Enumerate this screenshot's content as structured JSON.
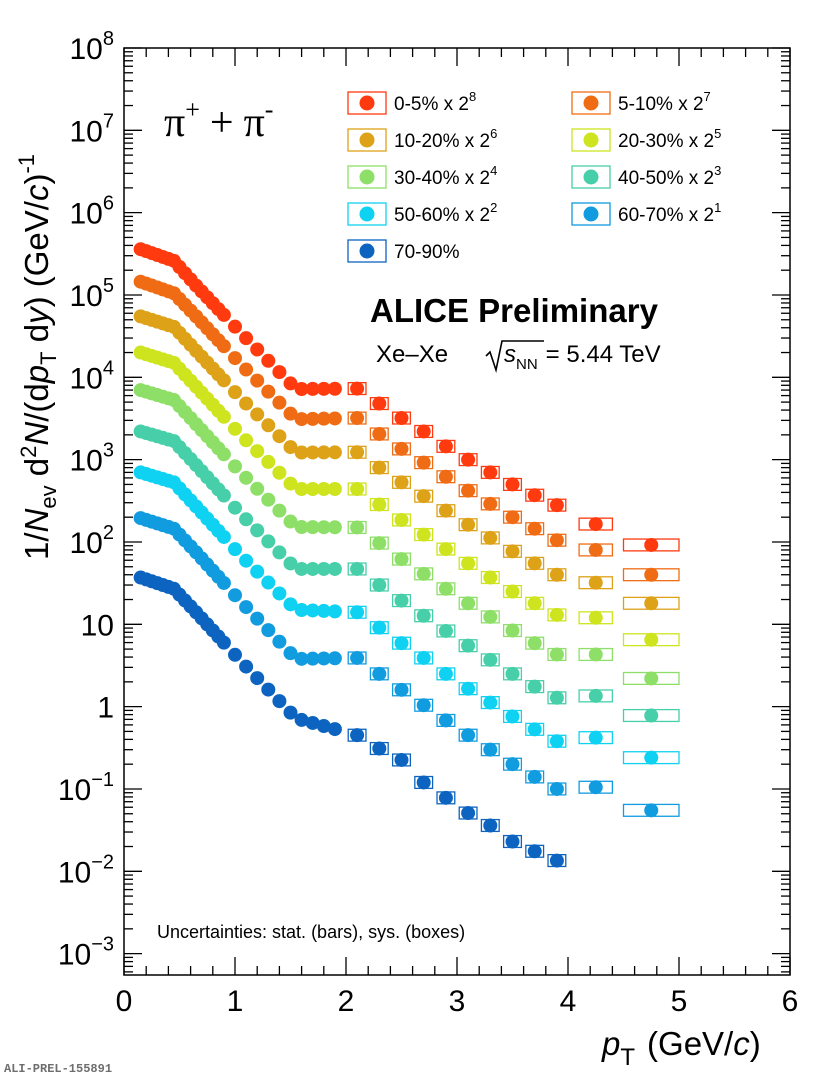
{
  "chart_data": {
    "type": "scatter",
    "title": "ALICE Preliminary",
    "subtitle": {
      "system": "Xe–Xe",
      "energy_var": "s",
      "energy_sub": "NN",
      "energy_value": "= 5.44 TeV"
    },
    "particle": {
      "base1": "π",
      "sup1": "+",
      "plus": "+",
      "base2": "π",
      "sup2": "-"
    },
    "xlabel": {
      "var": "p",
      "sub": "T",
      "unit_open": "(GeV/",
      "unit_c": "c",
      "unit_close": ")"
    },
    "ylabel": {
      "p1": "1/",
      "p2": "N",
      "p3": "ev",
      "p4": " d",
      "p5": "2",
      "p6": "N",
      "p7": "/(d",
      "p8": "p",
      "p9": "T",
      "p10": " d",
      "p11": "y",
      "p12": ") (GeV/",
      "p13": "c",
      "p14": ")",
      "p15": "-1"
    },
    "xlim": [
      0,
      6
    ],
    "ylog": true,
    "ylim": [
      0.00055,
      100000000
    ],
    "x_ticks": [
      "0",
      "1",
      "2",
      "3",
      "4",
      "5",
      "6"
    ],
    "y_ticks": [
      {
        "base": "10",
        "exp": "8"
      },
      {
        "base": "10",
        "exp": "7"
      },
      {
        "base": "10",
        "exp": "6"
      },
      {
        "base": "10",
        "exp": "5"
      },
      {
        "base": "10",
        "exp": "4"
      },
      {
        "base": "10",
        "exp": "3"
      },
      {
        "base": "10",
        "exp": "2"
      },
      {
        "base": "10",
        "exp": ""
      },
      {
        "base": "1",
        "exp": ""
      },
      {
        "base": "10",
        "exp": "−1"
      },
      {
        "base": "10",
        "exp": "−2"
      },
      {
        "base": "10",
        "exp": "−3"
      }
    ],
    "note": "Uncertainties: stat. (bars), sys. (boxes)",
    "series": [
      {
        "name": "0-5% x 2",
        "exp": "8",
        "color": "#ff3a0e",
        "points": [
          [
            0.15,
            360000
          ],
          [
            0.45,
            260000
          ],
          [
            0.65,
            130000
          ],
          [
            1.05,
            35000
          ],
          [
            1.55,
            7200
          ],
          [
            2.1,
            7300
          ],
          [
            2.3,
            4800
          ],
          [
            2.5,
            3200
          ],
          [
            2.7,
            2200
          ],
          [
            2.9,
            1450
          ],
          [
            3.1,
            1000
          ],
          [
            3.3,
            700
          ],
          [
            3.5,
            500
          ],
          [
            3.7,
            370
          ],
          [
            3.9,
            280
          ],
          [
            4.25,
            165
          ],
          [
            4.75,
            92
          ]
        ]
      },
      {
        "name": "5-10% x 2",
        "exp": "7",
        "color": "#f06c14",
        "points": [
          [
            0.15,
            145000
          ],
          [
            0.45,
            105000
          ],
          [
            0.65,
            55000
          ],
          [
            1.05,
            14500
          ],
          [
            1.55,
            3100
          ],
          [
            2.1,
            3200
          ],
          [
            2.3,
            2050
          ],
          [
            2.5,
            1350
          ],
          [
            2.7,
            920
          ],
          [
            2.9,
            620
          ],
          [
            3.1,
            420
          ],
          [
            3.3,
            290
          ],
          [
            3.5,
            200
          ],
          [
            3.7,
            145
          ],
          [
            3.9,
            105
          ],
          [
            4.25,
            80
          ],
          [
            4.75,
            40
          ]
        ]
      },
      {
        "name": "10-20% x 2",
        "exp": "6",
        "color": "#dda218",
        "points": [
          [
            0.15,
            55000
          ],
          [
            0.45,
            41000
          ],
          [
            0.65,
            21000
          ],
          [
            1.05,
            5600
          ],
          [
            1.55,
            1220
          ],
          [
            2.1,
            1230
          ],
          [
            2.3,
            800
          ],
          [
            2.5,
            530
          ],
          [
            2.7,
            360
          ],
          [
            2.9,
            240
          ],
          [
            3.1,
            162
          ],
          [
            3.3,
            112
          ],
          [
            3.5,
            77
          ],
          [
            3.7,
            55
          ],
          [
            3.9,
            40
          ],
          [
            4.25,
            32
          ],
          [
            4.75,
            18
          ]
        ]
      },
      {
        "name": "20-30% x 2",
        "exp": "5",
        "color": "#cde41e",
        "points": [
          [
            0.15,
            20000
          ],
          [
            0.45,
            15000
          ],
          [
            0.65,
            7700
          ],
          [
            1.05,
            2000
          ],
          [
            1.55,
            440
          ],
          [
            2.1,
            440
          ],
          [
            2.3,
            285
          ],
          [
            2.5,
            185
          ],
          [
            2.7,
            123
          ],
          [
            2.9,
            82
          ],
          [
            3.1,
            55
          ],
          [
            3.3,
            37
          ],
          [
            3.5,
            25
          ],
          [
            3.7,
            18
          ],
          [
            3.9,
            13
          ],
          [
            4.25,
            12
          ],
          [
            4.75,
            6.5
          ]
        ]
      },
      {
        "name": "30-40% x 2",
        "exp": "4",
        "color": "#8edf68",
        "points": [
          [
            0.15,
            7000
          ],
          [
            0.45,
            5300
          ],
          [
            0.65,
            2700
          ],
          [
            1.05,
            700
          ],
          [
            1.55,
            152
          ],
          [
            2.1,
            150
          ],
          [
            2.3,
            97
          ],
          [
            2.5,
            62
          ],
          [
            2.7,
            41
          ],
          [
            2.9,
            27
          ],
          [
            3.1,
            18
          ],
          [
            3.3,
            12.3
          ],
          [
            3.5,
            8.4
          ],
          [
            3.7,
            5.9
          ],
          [
            3.9,
            4.3
          ],
          [
            4.25,
            4.3
          ],
          [
            4.75,
            2.2
          ]
        ]
      },
      {
        "name": "40-50% x 2",
        "exp": "3",
        "color": "#46cfa8",
        "points": [
          [
            0.15,
            2200
          ],
          [
            0.45,
            1680
          ],
          [
            0.65,
            860
          ],
          [
            1.05,
            220
          ],
          [
            1.55,
            47
          ],
          [
            2.1,
            47
          ],
          [
            2.3,
            30
          ],
          [
            2.5,
            19.4
          ],
          [
            2.7,
            12.7
          ],
          [
            2.9,
            8.3
          ],
          [
            3.1,
            5.5
          ],
          [
            3.3,
            3.7
          ],
          [
            3.5,
            2.5
          ],
          [
            3.7,
            1.75
          ],
          [
            3.9,
            1.28
          ],
          [
            4.25,
            1.35
          ],
          [
            4.75,
            0.78
          ]
        ]
      },
      {
        "name": "50-60% x 2",
        "exp": "2",
        "color": "#0fd2f2",
        "points": [
          [
            0.15,
            700
          ],
          [
            0.45,
            530
          ],
          [
            0.65,
            270
          ],
          [
            1.05,
            69
          ],
          [
            1.55,
            15
          ],
          [
            2.1,
            14
          ],
          [
            2.3,
            9.1
          ],
          [
            2.5,
            5.9
          ],
          [
            2.7,
            3.9
          ],
          [
            2.9,
            2.5
          ],
          [
            3.1,
            1.65
          ],
          [
            3.3,
            1.12
          ],
          [
            3.5,
            0.76
          ],
          [
            3.7,
            0.53
          ],
          [
            3.9,
            0.38
          ],
          [
            4.25,
            0.42
          ],
          [
            4.75,
            0.24
          ]
        ]
      },
      {
        "name": "60-70% x 2",
        "exp": "1",
        "color": "#119ce0",
        "points": [
          [
            0.15,
            195.0
          ],
          [
            0.45,
            145
          ],
          [
            0.65,
            75
          ],
          [
            1.05,
            19
          ],
          [
            1.55,
            3.8
          ],
          [
            2.1,
            3.9
          ],
          [
            2.3,
            2.5
          ],
          [
            2.5,
            1.6
          ],
          [
            2.7,
            1.04
          ],
          [
            2.9,
            0.68
          ],
          [
            3.1,
            0.45
          ],
          [
            3.3,
            0.3
          ],
          [
            3.5,
            0.2
          ],
          [
            3.7,
            0.14
          ],
          [
            3.9,
            0.1
          ],
          [
            4.25,
            0.105
          ],
          [
            4.75,
            0.055
          ]
        ]
      },
      {
        "name": "70-90%",
        "exp": "",
        "color": "#0c64c0",
        "points": [
          [
            0.15,
            37
          ],
          [
            0.45,
            27
          ],
          [
            0.65,
            14
          ],
          [
            1.05,
            3.6
          ],
          [
            1.55,
            0.72
          ],
          [
            2.1,
            0.45
          ],
          [
            2.3,
            0.31
          ],
          [
            2.5,
            0.225
          ],
          [
            2.7,
            0.12
          ],
          [
            2.9,
            0.078
          ],
          [
            3.1,
            0.051
          ],
          [
            3.3,
            0.036
          ],
          [
            3.5,
            0.023
          ],
          [
            3.7,
            0.0175
          ],
          [
            3.9,
            0.0135
          ]
        ]
      }
    ]
  },
  "footer_id": "ALI-PREL-155891"
}
